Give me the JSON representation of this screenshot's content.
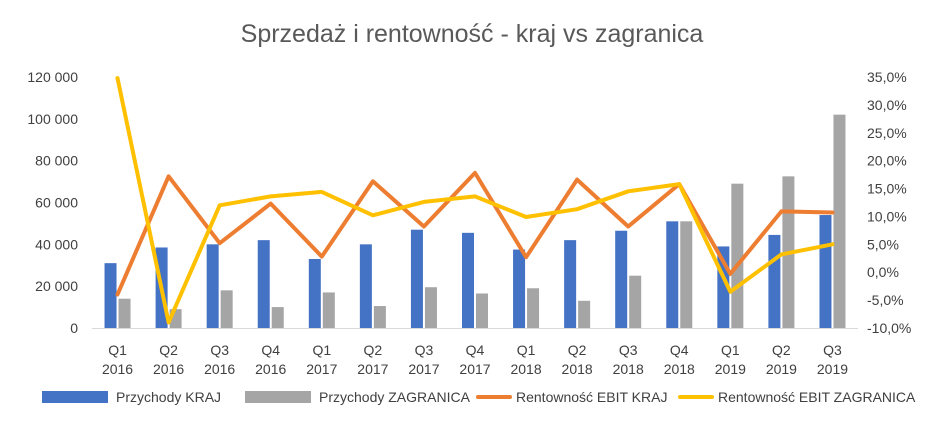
{
  "chart_data": {
    "type": "bar",
    "title": "Sprzedaż i rentowność - kraj vs zagranica",
    "categories": [
      [
        "Q1",
        "2016"
      ],
      [
        "Q2",
        "2016"
      ],
      [
        "Q3",
        "2016"
      ],
      [
        "Q4",
        "2016"
      ],
      [
        "Q1",
        "2017"
      ],
      [
        "Q2",
        "2017"
      ],
      [
        "Q3",
        "2017"
      ],
      [
        "Q4",
        "2017"
      ],
      [
        "Q1",
        "2018"
      ],
      [
        "Q2",
        "2018"
      ],
      [
        "Q3",
        "2018"
      ],
      [
        "Q4",
        "2018"
      ],
      [
        "Q1",
        "2019"
      ],
      [
        "Q2",
        "2019"
      ],
      [
        "Q3",
        "2019"
      ]
    ],
    "y_left": {
      "min": 0,
      "max": 120000,
      "ticks": [
        0,
        20000,
        40000,
        60000,
        80000,
        100000,
        120000
      ],
      "tick_labels": [
        "0",
        "20 000",
        "40 000",
        "60 000",
        "80 000",
        "100 000",
        "120 000"
      ]
    },
    "y_right": {
      "min": -10,
      "max": 35,
      "ticks": [
        -10,
        -5,
        0,
        5,
        10,
        15,
        20,
        25,
        30,
        35
      ],
      "tick_labels": [
        "-10,0%",
        "-5,0%",
        "0,0%",
        "5,0%",
        "10,0%",
        "15,0%",
        "20,0%",
        "25,0%",
        "30,0%",
        "35,0%"
      ]
    },
    "series": [
      {
        "name": "Przychody KRAJ",
        "kind": "bar",
        "axis": "left",
        "color": "#4472C4",
        "values": [
          31000,
          38500,
          40000,
          42000,
          33000,
          40000,
          47000,
          45500,
          37500,
          42000,
          46500,
          51000,
          39000,
          44500,
          54000
        ]
      },
      {
        "name": "Przychody ZAGRANICA",
        "kind": "bar",
        "axis": "left",
        "color": "#A5A5A5",
        "values": [
          14000,
          9000,
          18000,
          10000,
          17000,
          10500,
          19500,
          16500,
          19000,
          13000,
          25000,
          51000,
          69000,
          72500,
          102000
        ]
      },
      {
        "name": "Rentowność EBIT KRAJ",
        "kind": "line",
        "axis": "right",
        "color": "#ED7D31",
        "values": [
          -4.0,
          17.2,
          5.2,
          12.3,
          2.8,
          16.3,
          8.2,
          17.8,
          2.7,
          16.6,
          8.2,
          15.8,
          -0.3,
          10.9,
          10.7
        ]
      },
      {
        "name": "Rentowność EBIT ZAGRANICA",
        "kind": "line",
        "axis": "right",
        "color": "#FFC000",
        "values": [
          34.8,
          -9.0,
          12.0,
          13.6,
          14.4,
          10.2,
          12.6,
          13.6,
          9.9,
          11.3,
          14.5,
          15.8,
          -3.5,
          3.2,
          5.0
        ]
      }
    ],
    "legend_position": "bottom",
    "grid": false
  }
}
